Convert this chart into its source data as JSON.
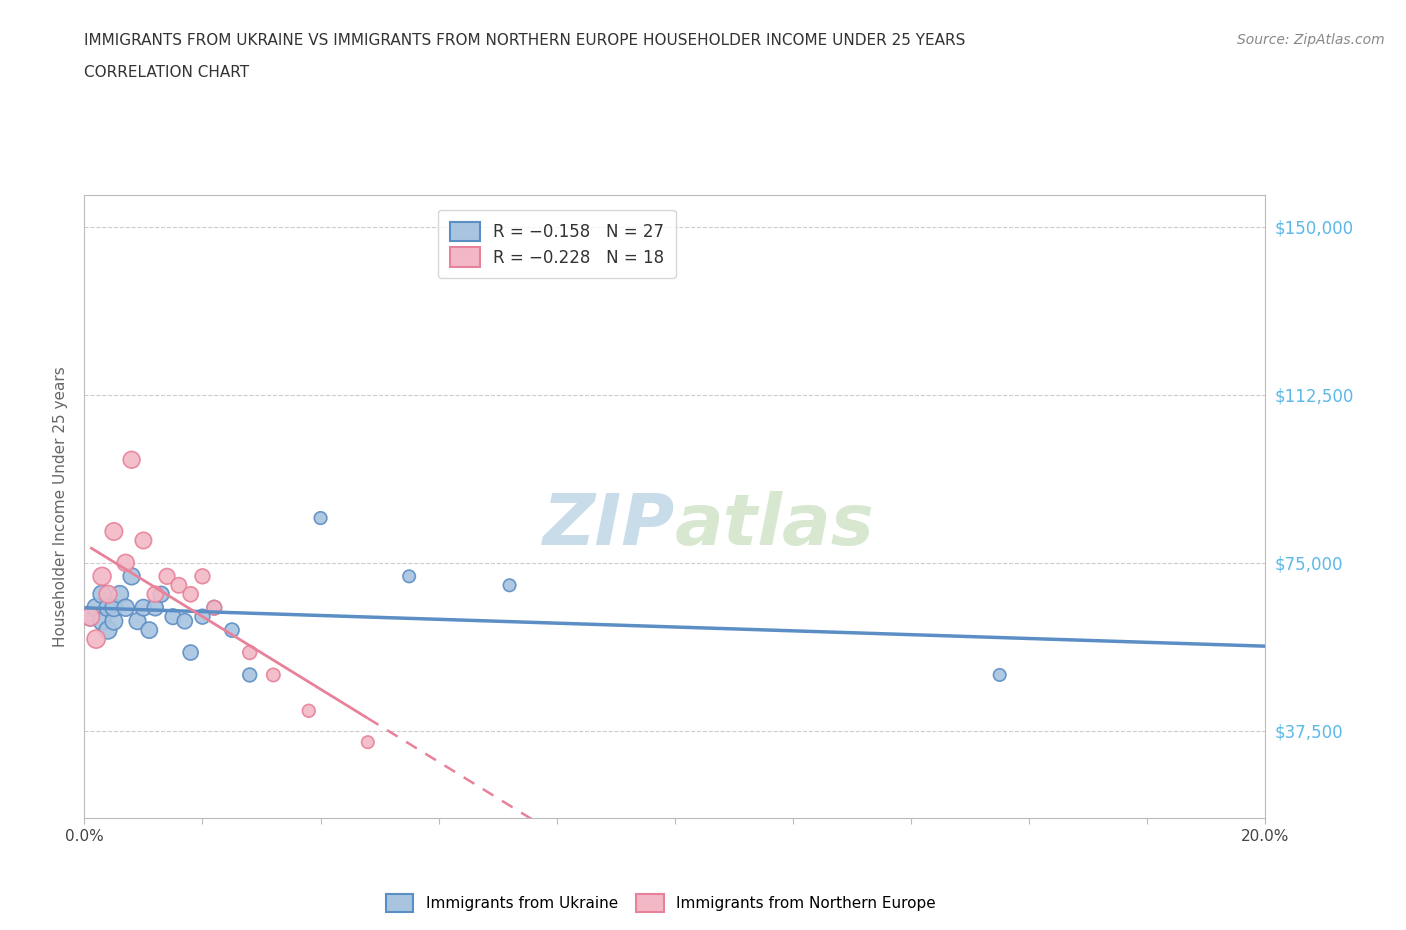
{
  "title_line1": "IMMIGRANTS FROM UKRAINE VS IMMIGRANTS FROM NORTHERN EUROPE HOUSEHOLDER INCOME UNDER 25 YEARS",
  "title_line2": "CORRELATION CHART",
  "source_text": "Source: ZipAtlas.com",
  "ylabel": "Householder Income Under 25 years",
  "xlim": [
    0.0,
    0.2
  ],
  "ylim": [
    18000,
    157000
  ],
  "yticks": [
    37500,
    75000,
    112500,
    150000
  ],
  "ytick_labels": [
    "$37,500",
    "$75,000",
    "$112,500",
    "$150,000"
  ],
  "xticks": [
    0.0,
    0.02,
    0.04,
    0.06,
    0.08,
    0.1,
    0.12,
    0.14,
    0.16,
    0.18,
    0.2
  ],
  "ukraine_color": "#5b8ec4",
  "ukraine_color_fill": "#a8c4e0",
  "northern_europe_color": "#e8819a",
  "northern_europe_color_fill": "#f2b8c6",
  "legend_label_ukraine": "R = −0.158   N = 27",
  "legend_label_northern": "R = −0.228   N = 18",
  "ukraine_x": [
    0.001,
    0.002,
    0.003,
    0.003,
    0.004,
    0.004,
    0.005,
    0.005,
    0.006,
    0.007,
    0.008,
    0.009,
    0.01,
    0.011,
    0.012,
    0.013,
    0.015,
    0.017,
    0.018,
    0.02,
    0.022,
    0.025,
    0.028,
    0.04,
    0.055,
    0.072,
    0.155
  ],
  "ukraine_y": [
    63000,
    65000,
    62000,
    68000,
    60000,
    65000,
    62000,
    65000,
    68000,
    65000,
    72000,
    62000,
    65000,
    60000,
    65000,
    68000,
    63000,
    62000,
    55000,
    63000,
    65000,
    60000,
    50000,
    85000,
    72000,
    70000,
    50000
  ],
  "northern_x": [
    0.001,
    0.002,
    0.003,
    0.004,
    0.005,
    0.007,
    0.008,
    0.01,
    0.012,
    0.014,
    0.016,
    0.018,
    0.02,
    0.022,
    0.028,
    0.032,
    0.038,
    0.048
  ],
  "northern_y": [
    63000,
    58000,
    72000,
    68000,
    82000,
    75000,
    98000,
    80000,
    68000,
    72000,
    70000,
    68000,
    72000,
    65000,
    55000,
    50000,
    42000,
    35000
  ],
  "watermark_color": "#d8e8f0",
  "background_color": "#ffffff",
  "grid_color": "#cccccc",
  "axis_color": "#bbbbbb",
  "right_label_color": "#5bb8e8",
  "title_color": "#333333",
  "source_color": "#888888"
}
